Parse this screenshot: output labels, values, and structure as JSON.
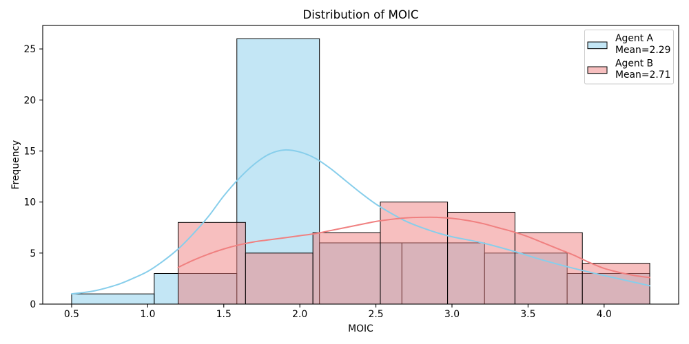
{
  "chart_data": {
    "type": "bar",
    "title": "Distribution of MOIC",
    "xlabel": "MOIC",
    "ylabel": "Frequency",
    "xlim": [
      0.31,
      4.49
    ],
    "ylim": [
      0,
      27.3
    ],
    "xticks": [
      0.5,
      1.0,
      1.5,
      2.0,
      2.5,
      3.0,
      3.5,
      4.0
    ],
    "xtick_labels": [
      "0.5",
      "1.0",
      "1.5",
      "2.0",
      "2.5",
      "3.0",
      "3.5",
      "4.0"
    ],
    "yticks": [
      0,
      5,
      10,
      15,
      20,
      25
    ],
    "ytick_labels": [
      "0",
      "5",
      "10",
      "15",
      "20",
      "25"
    ],
    "grid": false,
    "legend": "top-right",
    "series": [
      {
        "name": "Agent A",
        "mean_label": "Mean=2.29",
        "color": "#87ceeb",
        "bin_edges": [
          0.5,
          1.043,
          1.586,
          2.129,
          2.671,
          3.214,
          3.757,
          4.3
        ],
        "counts": [
          1,
          3,
          26,
          6,
          6,
          5,
          3
        ],
        "kde": {
          "x": [
            0.5,
            0.65,
            0.8,
            0.9,
            1.0,
            1.1,
            1.2,
            1.3,
            1.4,
            1.5,
            1.6,
            1.7,
            1.8,
            1.9,
            2.0,
            2.1,
            2.2,
            2.3,
            2.4,
            2.5,
            2.6,
            2.7,
            2.8,
            2.9,
            3.0,
            3.2,
            3.4,
            3.6,
            3.8,
            4.0,
            4.15,
            4.3
          ],
          "y": [
            1.0,
            1.3,
            1.9,
            2.5,
            3.2,
            4.2,
            5.4,
            6.9,
            8.6,
            10.6,
            12.3,
            13.7,
            14.7,
            15.1,
            14.9,
            14.3,
            13.3,
            12.1,
            10.9,
            9.8,
            8.9,
            8.1,
            7.5,
            7.0,
            6.6,
            6.0,
            5.2,
            4.3,
            3.5,
            2.8,
            2.3,
            1.8
          ]
        }
      },
      {
        "name": "Agent B",
        "mean_label": "Mean=2.71",
        "color": "#f08080",
        "bin_edges": [
          1.2,
          1.643,
          2.086,
          2.529,
          2.971,
          3.414,
          3.857,
          4.3
        ],
        "counts": [
          8,
          5,
          7,
          10,
          9,
          7,
          4
        ],
        "kde": {
          "x": [
            1.2,
            1.3,
            1.4,
            1.5,
            1.6,
            1.7,
            1.8,
            1.9,
            2.0,
            2.1,
            2.2,
            2.3,
            2.4,
            2.5,
            2.6,
            2.7,
            2.8,
            2.9,
            3.0,
            3.1,
            3.2,
            3.3,
            3.4,
            3.5,
            3.6,
            3.7,
            3.8,
            3.9,
            4.0,
            4.1,
            4.2,
            4.3
          ],
          "y": [
            3.6,
            4.3,
            4.9,
            5.4,
            5.8,
            6.1,
            6.3,
            6.5,
            6.7,
            6.9,
            7.2,
            7.5,
            7.8,
            8.1,
            8.3,
            8.45,
            8.5,
            8.5,
            8.4,
            8.2,
            7.9,
            7.5,
            7.1,
            6.6,
            6.0,
            5.4,
            4.8,
            4.1,
            3.5,
            3.1,
            2.8,
            2.6
          ]
        }
      }
    ]
  }
}
